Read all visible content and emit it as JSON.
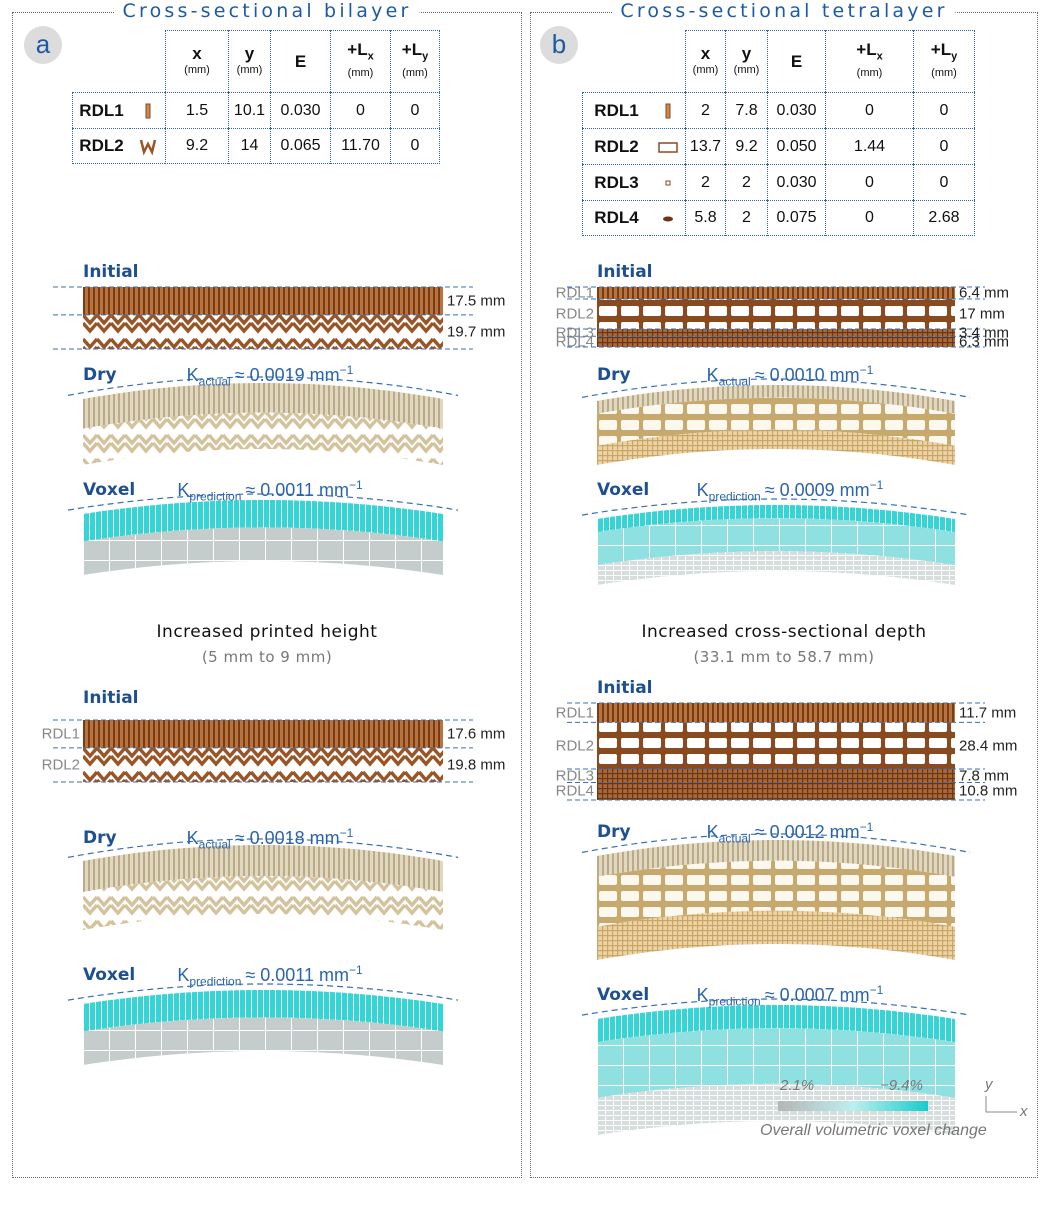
{
  "panels": [
    {
      "label": "a",
      "title": "Cross-sectional bilayer",
      "table": {
        "columns": [
          {
            "label": "x",
            "unit": "(mm)"
          },
          {
            "label": "y",
            "unit": "(mm)"
          },
          {
            "label": "E"
          },
          {
            "label": "+L",
            "subscript": "x",
            "unit": "(mm)"
          },
          {
            "label": "+L",
            "subscript": "y",
            "unit": "(mm)"
          }
        ],
        "rows": [
          {
            "name": "RDL1",
            "cells": [
              "1.5",
              "10.1",
              "0.030",
              "0",
              "0"
            ]
          },
          {
            "name": "RDL2",
            "cells": [
              "9.2",
              "14",
              "0.065",
              "11.70",
              "0"
            ]
          }
        ]
      },
      "baseline": {
        "sections": [
          {
            "heading": "Initial",
            "dimensions": [
              "17.5 mm",
              "19.7 mm"
            ]
          },
          {
            "heading": "Dry",
            "curvature": {
              "symbol": "K",
              "subscript": "actual",
              "text": "≈ 0.0019 mm",
              "exponent": "−1"
            }
          },
          {
            "heading": "Voxel",
            "curvature": {
              "symbol": "K",
              "subscript": "prediction",
              "text": "≈ 0.0011 mm",
              "exponent": "−1"
            }
          }
        ]
      },
      "variant": {
        "title": "Increased printed height",
        "subtitle": "(5 mm to 9 mm)",
        "sections": [
          {
            "heading": "Initial",
            "layer_labels": [
              "RDL1",
              "RDL2"
            ],
            "dimensions": [
              "17.6 mm",
              "19.8 mm"
            ]
          },
          {
            "heading": "Dry",
            "curvature": {
              "symbol": "K",
              "subscript": "actual",
              "text": "≈ 0.0018 mm",
              "exponent": "−1"
            }
          },
          {
            "heading": "Voxel",
            "curvature": {
              "symbol": "K",
              "subscript": "prediction",
              "text": "≈ 0.0011 mm",
              "exponent": "−1"
            }
          }
        ]
      }
    },
    {
      "label": "b",
      "title": "Cross-sectional tetralayer",
      "table": {
        "columns": [
          {
            "label": "x",
            "unit": "(mm)"
          },
          {
            "label": "y",
            "unit": "(mm)"
          },
          {
            "label": "E"
          },
          {
            "label": "+L",
            "subscript": "x",
            "unit": "(mm)"
          },
          {
            "label": "+L",
            "subscript": "y",
            "unit": "(mm)"
          }
        ],
        "rows": [
          {
            "name": "RDL1",
            "cells": [
              "2",
              "7.8",
              "0.030",
              "0",
              "0"
            ]
          },
          {
            "name": "RDL2",
            "cells": [
              "13.7",
              "9.2",
              "0.050",
              "1.44",
              "0"
            ]
          },
          {
            "name": "RDL3",
            "cells": [
              "2",
              "2",
              "0.030",
              "0",
              "0"
            ]
          },
          {
            "name": "RDL4",
            "cells": [
              "5.8",
              "2",
              "0.075",
              "0",
              "2.68"
            ]
          }
        ]
      },
      "baseline": {
        "sections": [
          {
            "heading": "Initial",
            "layer_labels": [
              "RDL1",
              "RDL2",
              "RDL3",
              "RDL4"
            ],
            "dimensions": [
              "6.4 mm",
              "17 mm",
              "3.4 mm",
              "6.3 mm"
            ]
          },
          {
            "heading": "Dry",
            "curvature": {
              "symbol": "K",
              "subscript": "actual",
              "text": "≈ 0.0010 mm",
              "exponent": "−1"
            }
          },
          {
            "heading": "Voxel",
            "curvature": {
              "symbol": "K",
              "subscript": "prediction",
              "text": "≈ 0.0009 mm",
              "exponent": "−1"
            }
          }
        ]
      },
      "variant": {
        "title": "Increased cross-sectional depth",
        "subtitle": "(33.1 mm to 58.7 mm)",
        "sections": [
          {
            "heading": "Initial",
            "layer_labels": [
              "RDL1",
              "RDL2",
              "RDL3",
              "RDL4"
            ],
            "dimensions": [
              "11.7 mm",
              "28.4 mm",
              "7.8 mm",
              "10.8 mm"
            ]
          },
          {
            "heading": "Dry",
            "curvature": {
              "symbol": "K",
              "subscript": "actual",
              "text": "≈ 0.0012 mm",
              "exponent": "−1"
            }
          },
          {
            "heading": "Voxel",
            "curvature": {
              "symbol": "K",
              "subscript": "prediction",
              "text": "≈ 0.0007 mm",
              "exponent": "−1"
            }
          }
        ]
      }
    }
  ],
  "legend": {
    "min_label": "2.1%",
    "max_label": "−9.4%",
    "caption": "Overall volumetric voxel change",
    "axes": {
      "y": "y",
      "x": "x"
    }
  }
}
